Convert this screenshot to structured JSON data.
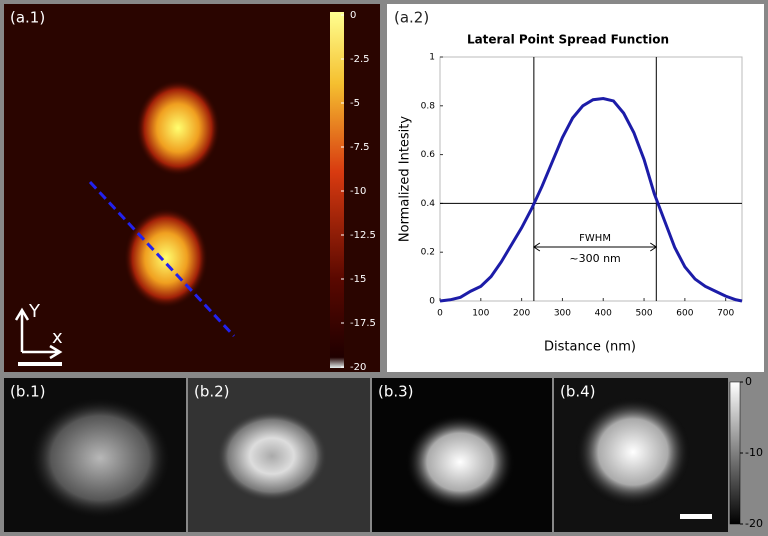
{
  "chart_data": [
    {
      "type": "heatmap",
      "panel_label": "(a.1)",
      "axis_labels": [
        "Y",
        "x"
      ],
      "colorbar": {
        "lim": [
          -20,
          0
        ],
        "ticks": [
          0,
          -2.5,
          -5,
          -7.5,
          -10,
          -12.5,
          -15,
          -17.5,
          -20
        ]
      }
    },
    {
      "type": "line",
      "panel_label": "(a.2)",
      "title": "Lateral Point Spread Function",
      "xlabel": "Distance (nm)",
      "ylabel": "Normalized Intesity",
      "x": [
        0,
        25,
        50,
        75,
        100,
        125,
        150,
        175,
        200,
        225,
        250,
        275,
        300,
        325,
        350,
        375,
        400,
        425,
        450,
        475,
        500,
        525,
        550,
        575,
        600,
        625,
        650,
        675,
        700,
        725,
        740
      ],
      "series": [
        {
          "color": "#1c1ca8",
          "values": [
            0,
            0.005,
            0.015,
            0.04,
            0.06,
            0.1,
            0.16,
            0.23,
            0.3,
            0.38,
            0.47,
            0.57,
            0.67,
            0.75,
            0.8,
            0.825,
            0.83,
            0.82,
            0.77,
            0.69,
            0.58,
            0.44,
            0.33,
            0.22,
            0.14,
            0.09,
            0.06,
            0.04,
            0.02,
            0.005,
            0
          ]
        }
      ],
      "xlim": [
        0,
        740
      ],
      "xticks": [
        0,
        100,
        200,
        300,
        400,
        500,
        600,
        700
      ],
      "ylim": [
        0,
        1
      ],
      "yticks": [
        0,
        0.2,
        0.4,
        0.6,
        0.8,
        1
      ],
      "reference_lines": {
        "x": [
          230,
          530
        ],
        "y": [
          0.4
        ]
      },
      "annotations": [
        "FWHM",
        "~300 nm"
      ]
    },
    {
      "type": "image-grid",
      "panel_labels": [
        "(b.1)",
        "(b.2)",
        "(b.3)",
        "(b.4)"
      ],
      "colorbar": {
        "lim": [
          -20,
          0
        ],
        "ticks": [
          0,
          -10,
          -20
        ]
      }
    }
  ]
}
